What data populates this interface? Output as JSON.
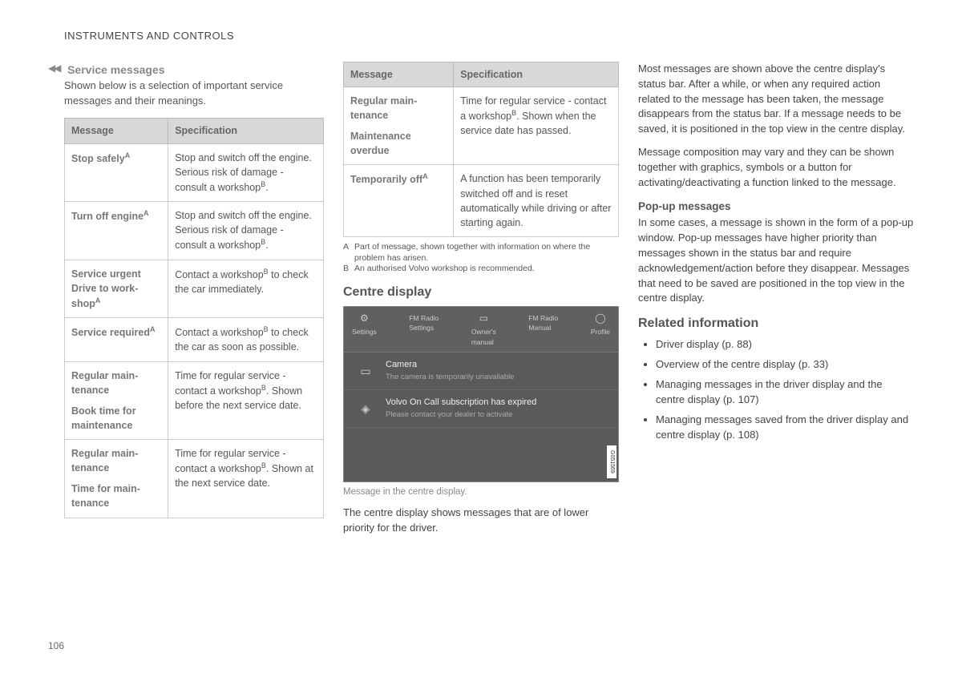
{
  "header": "INSTRUMENTS AND CONTROLS",
  "page_number": "106",
  "col1": {
    "continue_marker": "◀◀",
    "subhead": "Service messages",
    "intro": "Shown below is a selection of important service messages and their meanings.",
    "table": {
      "col_message": "Message",
      "col_spec": "Specification",
      "rows": [
        {
          "m": "Stop safely",
          "m_sup": "A",
          "s": "Stop and switch off the engine. Serious risk of damage - consult a work­shop",
          "s_sup": "B",
          "s_tail": "."
        },
        {
          "m": "Turn off engine",
          "m_sup": "A",
          "s": "Stop and switch off the engine. Serious risk of damage - consult a work­shop",
          "s_sup": "B",
          "s_tail": "."
        },
        {
          "m": "Service urgent Drive to work­shop",
          "m_sup": "A",
          "s": "Contact a workshop",
          "s_sup": "B",
          "s_tail": " to check the car immediately."
        },
        {
          "m": "Service required",
          "m_sup": "A",
          "s": "Contact a workshop",
          "s_sup": "B",
          "s_tail": " to check the car as soon as possible."
        },
        {
          "m": "Regular main­tenance",
          "m2": "Book time for maintenance",
          "s": "Time for regular service - contact a workshop",
          "s_sup": "B",
          "s_tail": ". Shown before the next service date."
        },
        {
          "m": "Regular main­tenance",
          "m2": "Time for main­tenance",
          "s": "Time for regular service - contact a workshop",
          "s_sup": "B",
          "s_tail": ". Shown at the next service date."
        }
      ]
    }
  },
  "col2": {
    "table": {
      "col_message": "Message",
      "col_spec": "Specification",
      "rows": [
        {
          "m": "Regular main­tenance",
          "m2": "Maintenance overdue",
          "s": "Time for regular service - contact a workshop",
          "s_sup": "B",
          "s_tail": ". Shown when the service date has passed."
        },
        {
          "m": "Temporarily off",
          "m_sup": "A",
          "s": "A function has been tem­porarily switched off and is reset automatically while driving or after starting again."
        }
      ]
    },
    "footnote_a_mk": "A",
    "footnote_a": "Part of message, shown together with information on where the problem has arisen.",
    "footnote_b_mk": "B",
    "footnote_b": "An authorised Volvo workshop is recommended.",
    "centre_heading": "Centre display",
    "screenshot": {
      "top": [
        {
          "icon": "⚙",
          "l1": "Settings",
          "l2": ""
        },
        {
          "icon": "",
          "l1": "FM Radio",
          "l2": "Settings"
        },
        {
          "icon": "▭",
          "l1": "Owner's",
          "l2": "manual"
        },
        {
          "icon": "",
          "l1": "FM Radio",
          "l2": "Manual"
        },
        {
          "icon": "◯",
          "l1": "Profile",
          "l2": ""
        }
      ],
      "row1": {
        "icon": "▭",
        "t1": "Camera",
        "t2": "The camera is temporarily unavailable"
      },
      "row2": {
        "icon": "◈",
        "t1": "Volvo On Call subscription has expired",
        "t2": "Please contact your dealer to activate"
      },
      "tag": "G051569"
    },
    "caption": "Message in the centre display.",
    "para": "The centre display shows messages that are of lower priority for the driver."
  },
  "col3": {
    "p1": "Most messages are shown above the centre dis­play's status bar. After a while, or when any required action related to the message has been taken, the message disappears from the status bar. If a message needs to be saved, it is posi­tioned in the top view in the centre display.",
    "p2": "Message composition may vary and they can be shown together with graphics, symbols or a but­ton for activating/deactivating a function linked to the message.",
    "popup_heading": "Pop-up messages",
    "p3": "In some cases, a message is shown in the form of a pop-up window. Pop-up messages have higher priority than messages shown in the sta­tus bar and require acknowledgement/action before they disappear. Messages that need to be saved are positioned in the top view in the centre display.",
    "related_heading": "Related information",
    "related": [
      "Driver display (p. 88)",
      "Overview of the centre display (p. 33)",
      "Managing messages in the driver display and the centre display (p. 107)",
      "Managing messages saved from the driver display and centre display (p. 108)"
    ]
  }
}
